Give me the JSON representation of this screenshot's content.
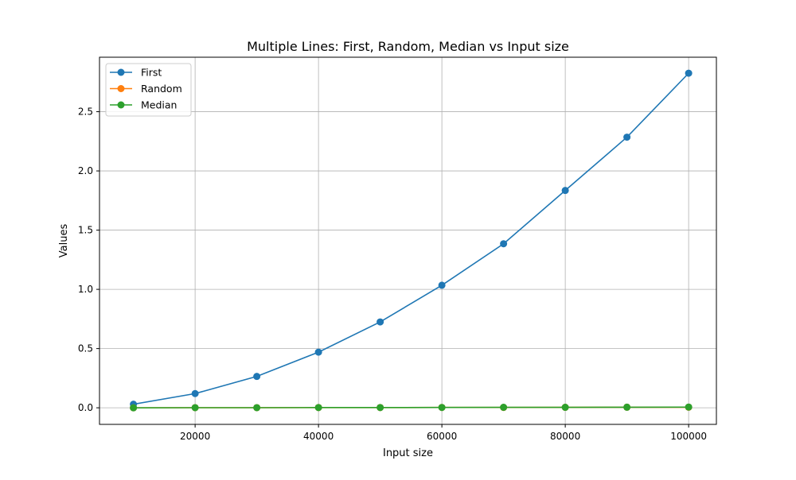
{
  "chart_data": {
    "type": "line",
    "title": "Multiple Lines: First, Random, Median vs Input size",
    "xlabel": "Input size",
    "ylabel": "Values",
    "xlim": [
      4500,
      104500
    ],
    "ylim": [
      -0.14,
      2.96
    ],
    "grid": true,
    "legend_position": "top-left",
    "x": [
      10000,
      20000,
      30000,
      40000,
      50000,
      60000,
      70000,
      80000,
      90000,
      100000
    ],
    "xticks": [
      20000,
      40000,
      60000,
      80000,
      100000
    ],
    "xtick_labels": [
      "20000",
      "40000",
      "60000",
      "80000",
      "100000"
    ],
    "yticks": [
      0.0,
      0.5,
      1.0,
      1.5,
      2.0,
      2.5
    ],
    "ytick_labels": [
      "0.0",
      "0.5",
      "1.0",
      "1.5",
      "2.0",
      "2.5"
    ],
    "series": [
      {
        "name": "First",
        "color": "#1f77b4",
        "marker": "circle",
        "values": [
          0.03,
          0.12,
          0.265,
          0.47,
          0.725,
          1.035,
          1.385,
          1.835,
          2.285,
          2.825
        ]
      },
      {
        "name": "Random",
        "color": "#ff7f0e",
        "marker": "circle",
        "values": [
          0.0,
          0.001,
          0.001,
          0.002,
          0.002,
          0.003,
          0.003,
          0.004,
          0.005,
          0.005
        ]
      },
      {
        "name": "Median",
        "color": "#2ca02c",
        "marker": "circle",
        "values": [
          0.0,
          0.001,
          0.001,
          0.002,
          0.002,
          0.003,
          0.004,
          0.004,
          0.005,
          0.006
        ]
      }
    ]
  }
}
